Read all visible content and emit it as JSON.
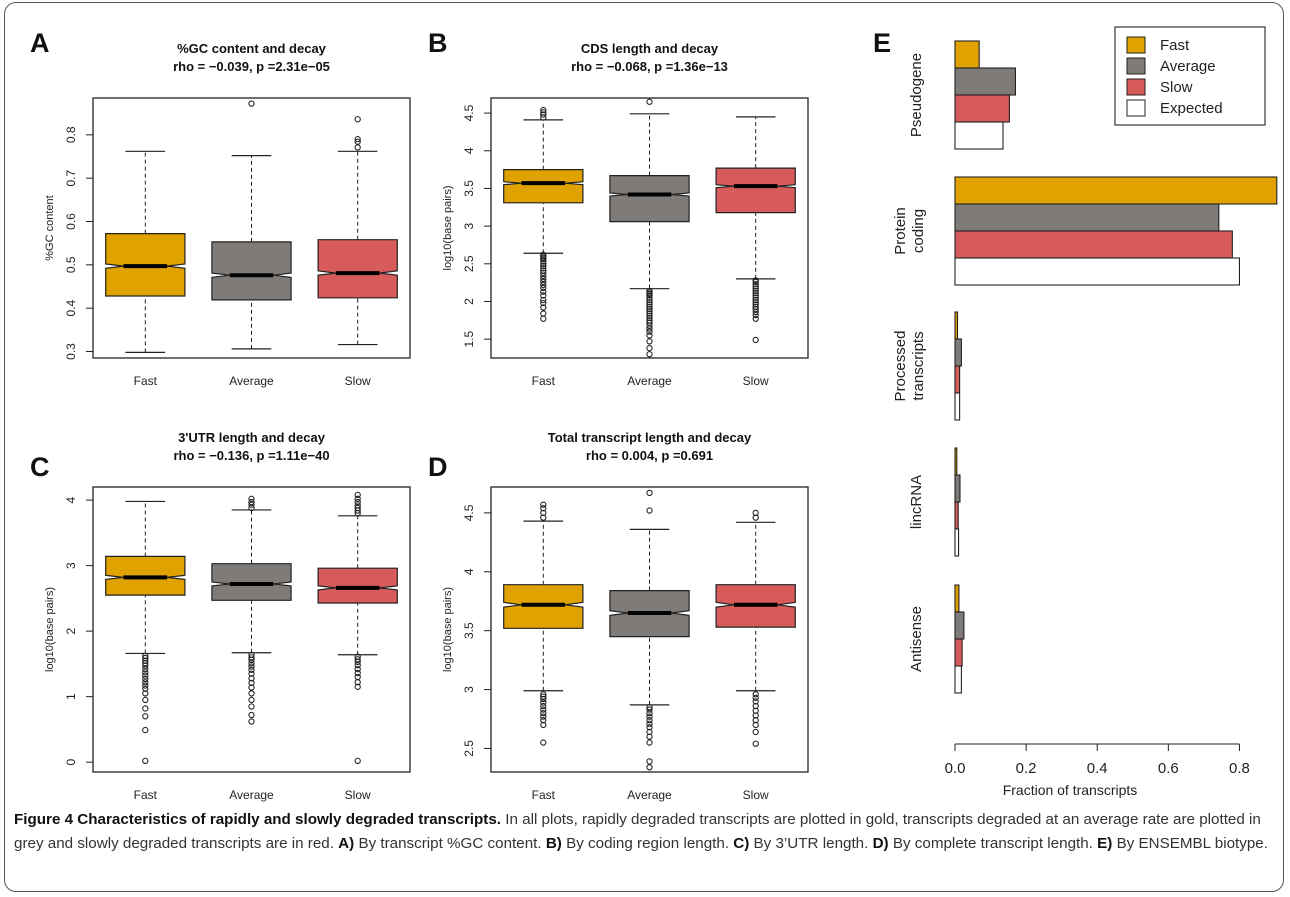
{
  "colors": {
    "fast": "#e0a200",
    "average": "#7f7b78",
    "slow": "#d85b5b",
    "expected": "#ffffff"
  },
  "caption": {
    "title": "Figure 4 Characteristics of rapidly and slowly degraded transcripts.",
    "intro": " In all plots, rapidly degraded transcripts are plotted in gold, transcripts degraded at an average rate are plotted in grey and slowly degraded transcripts are in red. ",
    "parts": [
      {
        "label": "A)",
        "text": " By transcript %GC content. "
      },
      {
        "label": "B)",
        "text": " By coding region length. "
      },
      {
        "label": "C)",
        "text": " By 3’UTR length. "
      },
      {
        "label": "D)",
        "text": " By complete transcript length. "
      },
      {
        "label": "E)",
        "text": " By ENSEMBL biotype."
      }
    ]
  },
  "chart_data": [
    {
      "panel": "A",
      "type": "boxplot",
      "title": "%GC content and decay",
      "subtitle": "rho = −0.039, p =2.31e−05",
      "ylabel": "%GC content",
      "ylim": [
        0.285,
        0.885
      ],
      "yticks": [
        0.3,
        0.4,
        0.5,
        0.6,
        0.7,
        0.8
      ],
      "categories": [
        "Fast",
        "Average",
        "Slow"
      ],
      "boxes": [
        {
          "name": "Fast",
          "whisker_low": 0.298,
          "q1": 0.428,
          "median": 0.497,
          "q3": 0.572,
          "whisker_high": 0.762,
          "notch": [
            0.492,
            0.502
          ],
          "outliers": []
        },
        {
          "name": "Average",
          "whisker_low": 0.306,
          "q1": 0.419,
          "median": 0.476,
          "q3": 0.553,
          "whisker_high": 0.752,
          "notch": [
            0.471,
            0.481
          ],
          "outliers": [
            0.872
          ]
        },
        {
          "name": "Slow",
          "whisker_low": 0.316,
          "q1": 0.424,
          "median": 0.481,
          "q3": 0.558,
          "whisker_high": 0.762,
          "notch": [
            0.476,
            0.486
          ],
          "outliers": [
            0.771,
            0.784,
            0.79,
            0.836
          ]
        }
      ]
    },
    {
      "panel": "B",
      "type": "boxplot",
      "title": "CDS length and decay",
      "subtitle": "rho = −0.068, p =1.36e−13",
      "ylabel": "log10(base pairs)",
      "ylim": [
        1.25,
        4.7
      ],
      "yticks": [
        1.5,
        2.0,
        2.5,
        3.0,
        3.5,
        4.0,
        4.5
      ],
      "categories": [
        "Fast",
        "Average",
        "Slow"
      ],
      "boxes": [
        {
          "name": "Fast",
          "whisker_low": 2.64,
          "q1": 3.31,
          "median": 3.57,
          "q3": 3.75,
          "whisker_high": 4.41,
          "notch": [
            3.55,
            3.59
          ],
          "outliers": [
            1.77,
            1.84,
            1.92,
            1.98,
            2.02,
            2.08,
            2.13,
            2.18,
            2.22,
            2.26,
            2.3,
            2.34,
            2.38,
            2.41,
            2.44,
            2.47,
            2.5,
            2.53,
            2.56,
            2.58,
            2.6,
            2.62,
            4.44,
            4.48,
            4.51,
            4.54
          ]
        },
        {
          "name": "Average",
          "whisker_low": 2.17,
          "q1": 3.06,
          "median": 3.42,
          "q3": 3.67,
          "whisker_high": 4.49,
          "notch": [
            3.4,
            3.44
          ],
          "outliers": [
            1.3,
            1.38,
            1.47,
            1.55,
            1.6,
            1.64,
            1.68,
            1.72,
            1.75,
            1.78,
            1.81,
            1.84,
            1.87,
            1.9,
            1.93,
            1.96,
            1.99,
            2.02,
            2.05,
            2.08,
            2.1,
            2.12,
            2.14,
            4.65
          ]
        },
        {
          "name": "Slow",
          "whisker_low": 2.3,
          "q1": 3.18,
          "median": 3.53,
          "q3": 3.77,
          "whisker_high": 4.45,
          "notch": [
            3.51,
            3.55
          ],
          "outliers": [
            1.49,
            1.77,
            1.82,
            1.86,
            1.9,
            1.93,
            1.96,
            1.99,
            2.02,
            2.05,
            2.08,
            2.11,
            2.14,
            2.17,
            2.2,
            2.23,
            2.26,
            2.28
          ]
        }
      ]
    },
    {
      "panel": "C",
      "type": "boxplot",
      "title": "3'UTR length and decay",
      "subtitle": "rho = −0.136, p =1.11e−40",
      "ylabel": "log10(base pairs)",
      "ylim": [
        -0.15,
        4.2
      ],
      "yticks": [
        0,
        1,
        2,
        3,
        4
      ],
      "categories": [
        "Fast",
        "Average",
        "Slow"
      ],
      "boxes": [
        {
          "name": "Fast",
          "whisker_low": 1.66,
          "q1": 2.55,
          "median": 2.82,
          "q3": 3.14,
          "whisker_high": 3.98,
          "notch": [
            2.79,
            2.85
          ],
          "outliers": [
            0.02,
            0.49,
            0.7,
            0.82,
            0.95,
            1.05,
            1.12,
            1.17,
            1.22,
            1.27,
            1.32,
            1.37,
            1.42,
            1.47,
            1.51,
            1.55,
            1.59,
            1.62
          ]
        },
        {
          "name": "Average",
          "whisker_low": 1.67,
          "q1": 2.47,
          "median": 2.72,
          "q3": 3.03,
          "whisker_high": 3.85,
          "notch": [
            2.69,
            2.75
          ],
          "outliers": [
            0.62,
            0.72,
            0.85,
            0.95,
            1.05,
            1.14,
            1.21,
            1.28,
            1.35,
            1.41,
            1.46,
            1.51,
            1.56,
            1.6,
            1.64,
            3.88,
            3.93,
            3.97,
            4.02
          ]
        },
        {
          "name": "Slow",
          "whisker_low": 1.64,
          "q1": 2.43,
          "median": 2.66,
          "q3": 2.96,
          "whisker_high": 3.76,
          "notch": [
            2.63,
            2.69
          ],
          "outliers": [
            0.02,
            1.15,
            1.22,
            1.3,
            1.36,
            1.42,
            1.48,
            1.53,
            1.57,
            1.61,
            3.8,
            3.84,
            3.88,
            3.92,
            3.97,
            4.02,
            4.08
          ]
        }
      ]
    },
    {
      "panel": "D",
      "type": "boxplot",
      "title": "Total transcript length and decay",
      "subtitle": "rho = 0.004, p =0.691",
      "ylabel": "log10(base pairs)",
      "ylim": [
        2.3,
        4.72
      ],
      "yticks": [
        2.5,
        3.0,
        3.5,
        4.0,
        4.5
      ],
      "categories": [
        "Fast",
        "Average",
        "Slow"
      ],
      "boxes": [
        {
          "name": "Fast",
          "whisker_low": 2.99,
          "q1": 3.52,
          "median": 3.72,
          "q3": 3.89,
          "whisker_high": 4.43,
          "notch": [
            3.7,
            3.74
          ],
          "outliers": [
            2.55,
            2.7,
            2.74,
            2.77,
            2.8,
            2.83,
            2.86,
            2.89,
            2.92,
            2.94,
            2.96,
            4.46,
            4.5,
            4.54,
            4.57
          ]
        },
        {
          "name": "Average",
          "whisker_low": 2.87,
          "q1": 3.45,
          "median": 3.65,
          "q3": 3.84,
          "whisker_high": 4.36,
          "notch": [
            3.63,
            3.67
          ],
          "outliers": [
            2.34,
            2.39,
            2.55,
            2.6,
            2.64,
            2.68,
            2.71,
            2.74,
            2.77,
            2.8,
            2.83,
            2.85,
            4.52,
            4.67
          ]
        },
        {
          "name": "Slow",
          "whisker_low": 2.99,
          "q1": 3.53,
          "median": 3.72,
          "q3": 3.89,
          "whisker_high": 4.42,
          "notch": [
            3.7,
            3.74
          ],
          "outliers": [
            2.54,
            2.64,
            2.7,
            2.74,
            2.78,
            2.82,
            2.86,
            2.9,
            2.93,
            2.96,
            4.46,
            4.5
          ]
        }
      ]
    },
    {
      "panel": "E",
      "type": "bar",
      "orientation": "horizontal",
      "xlabel": "Fraction of transcripts",
      "xlim": [
        0,
        0.9
      ],
      "xticks": [
        0.0,
        0.2,
        0.4,
        0.6,
        0.8
      ],
      "xticklabels": [
        "0.0",
        "0.2",
        "0.4",
        "0.6",
        "0.8"
      ],
      "categories": [
        "Pseudogene",
        "Protein coding",
        "Processed transcripts",
        "lincRNA",
        "Antisense"
      ],
      "category_lines": [
        [
          "Pseudogene"
        ],
        [
          "Protein",
          "coding"
        ],
        [
          "Processed",
          "transcripts"
        ],
        [
          "lincRNA"
        ],
        [
          "Antisense"
        ]
      ],
      "series": [
        {
          "name": "Fast",
          "color": "#e0a200",
          "values": [
            0.068,
            0.905,
            0.007,
            0.005,
            0.011
          ]
        },
        {
          "name": "Average",
          "color": "#7f7b78",
          "values": [
            0.17,
            0.742,
            0.018,
            0.014,
            0.025
          ]
        },
        {
          "name": "Slow",
          "color": "#d85b5b",
          "values": [
            0.153,
            0.78,
            0.013,
            0.009,
            0.02
          ]
        },
        {
          "name": "Expected",
          "color": "#ffffff",
          "values": [
            0.135,
            0.8,
            0.013,
            0.01,
            0.018
          ]
        }
      ],
      "legend": {
        "position": "top-right",
        "entries": [
          "Fast",
          "Average",
          "Slow",
          "Expected"
        ]
      }
    }
  ]
}
